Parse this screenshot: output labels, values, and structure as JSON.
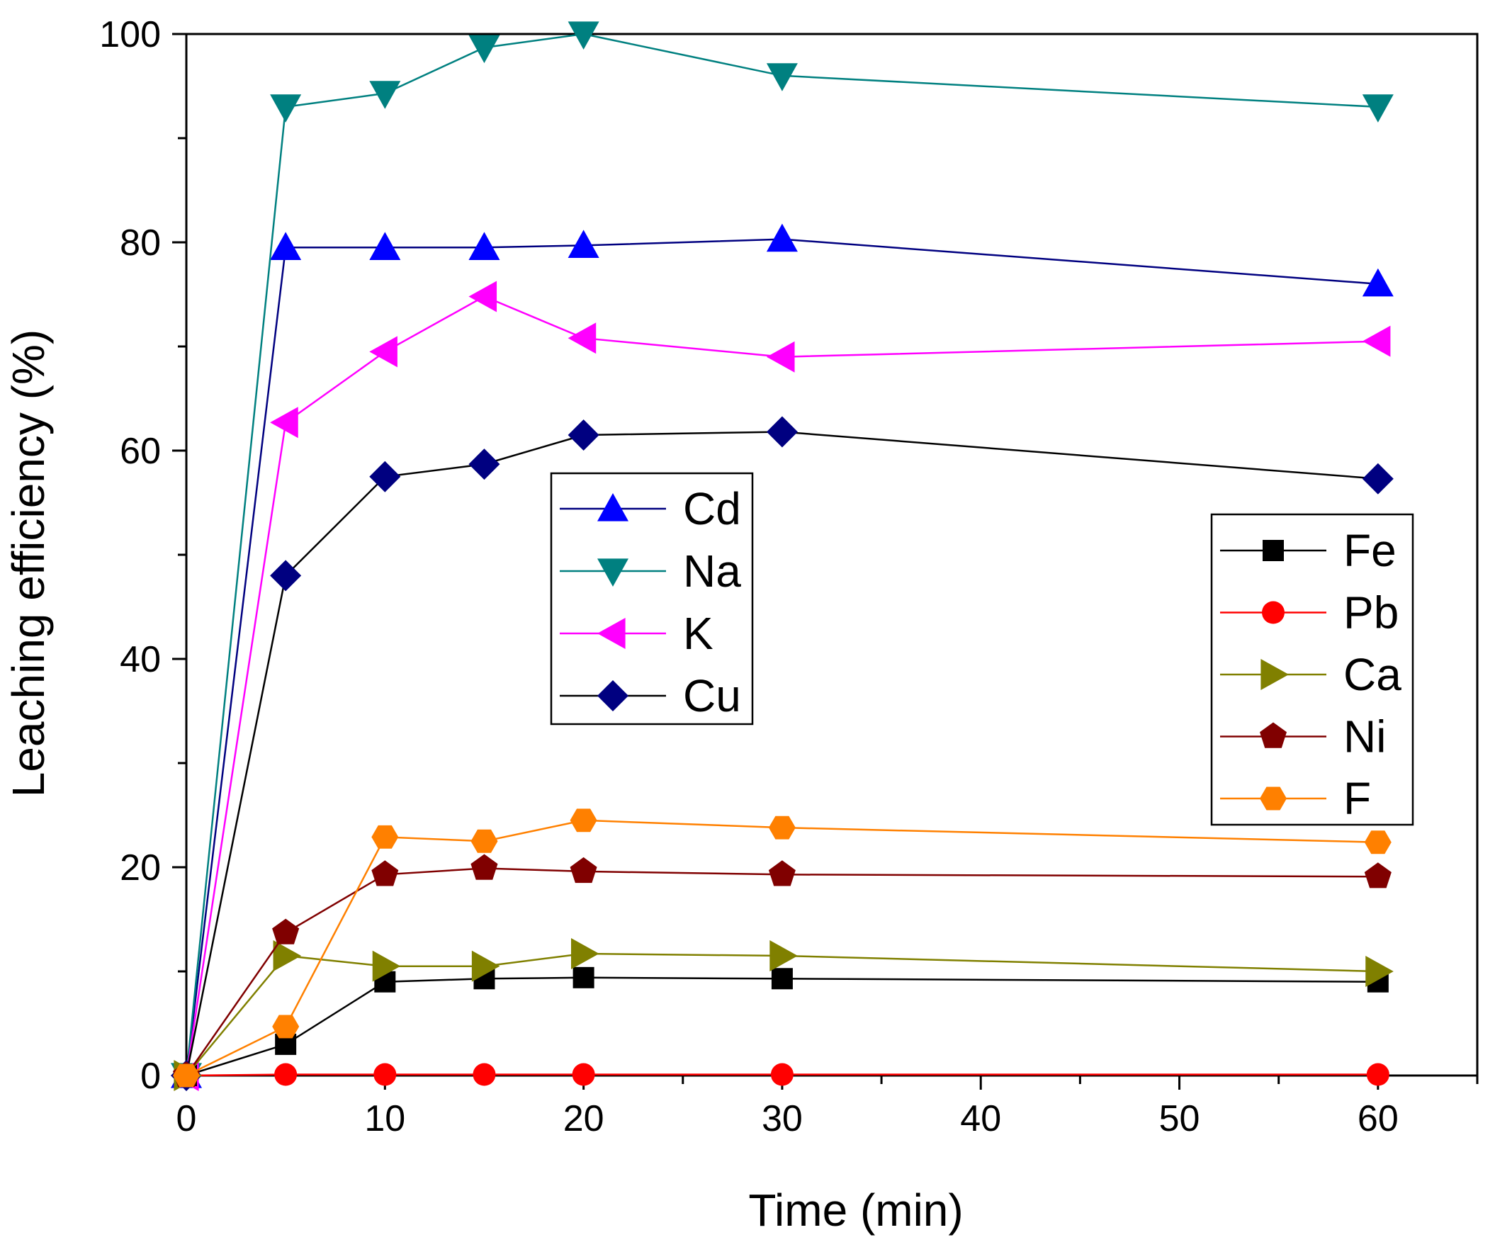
{
  "chart_data": {
    "type": "line",
    "xlabel": "Time (min)",
    "ylabel": "Leaching efficiency (%)",
    "xlim": [
      0,
      65
    ],
    "ylim": [
      0,
      100
    ],
    "xticks": [
      0,
      10,
      20,
      30,
      40,
      50,
      60
    ],
    "yticks": [
      0,
      20,
      40,
      60,
      80,
      100
    ],
    "grid": false,
    "x": [
      0,
      5,
      10,
      15,
      20,
      30,
      60
    ],
    "legends": [
      {
        "placement": "center",
        "entries": [
          "Cd",
          "Na",
          "K",
          "Cu"
        ]
      },
      {
        "placement": "right",
        "entries": [
          "Fe",
          "Pb",
          "Ca",
          "Ni",
          "F"
        ]
      }
    ],
    "series": [
      {
        "name": "Cd",
        "marker": "triangle-up",
        "color": "#0000ff",
        "line_color": "#000080",
        "values": [
          0,
          79.5,
          79.5,
          79.5,
          79.7,
          80.3,
          76
        ]
      },
      {
        "name": "Na",
        "marker": "triangle-down",
        "color": "#008080",
        "line_color": "#008080",
        "values": [
          0,
          93,
          94.3,
          98.7,
          100,
          96,
          93
        ]
      },
      {
        "name": "K",
        "marker": "triangle-left",
        "color": "#ff00ff",
        "line_color": "#ff00ff",
        "values": [
          0,
          62.7,
          69.5,
          74.8,
          70.8,
          69,
          70.5
        ]
      },
      {
        "name": "Cu",
        "marker": "diamond",
        "color": "#000080",
        "line_color": "#000000",
        "values": [
          0,
          48,
          57.5,
          58.7,
          61.5,
          61.8,
          57.3
        ]
      },
      {
        "name": "Fe",
        "marker": "square",
        "color": "#000000",
        "line_color": "#000000",
        "values": [
          0,
          3,
          9,
          9.3,
          9.4,
          9.3,
          9
        ]
      },
      {
        "name": "Pb",
        "marker": "circle",
        "color": "#ff0000",
        "line_color": "#ff0000",
        "values": [
          0,
          0.1,
          0.1,
          0.1,
          0.1,
          0.1,
          0.1
        ]
      },
      {
        "name": "Ca",
        "marker": "triangle-right",
        "color": "#808000",
        "line_color": "#808000",
        "values": [
          0,
          11.5,
          10.5,
          10.5,
          11.7,
          11.5,
          10
        ]
      },
      {
        "name": "Ni",
        "marker": "pentagon",
        "color": "#800000",
        "line_color": "#800000",
        "values": [
          0,
          13.7,
          19.3,
          19.9,
          19.6,
          19.3,
          19.1
        ]
      },
      {
        "name": "F",
        "marker": "hexagon",
        "color": "#ff8000",
        "line_color": "#ff8000",
        "values": [
          0,
          4.7,
          22.9,
          22.5,
          24.5,
          23.8,
          22.4
        ]
      }
    ]
  }
}
